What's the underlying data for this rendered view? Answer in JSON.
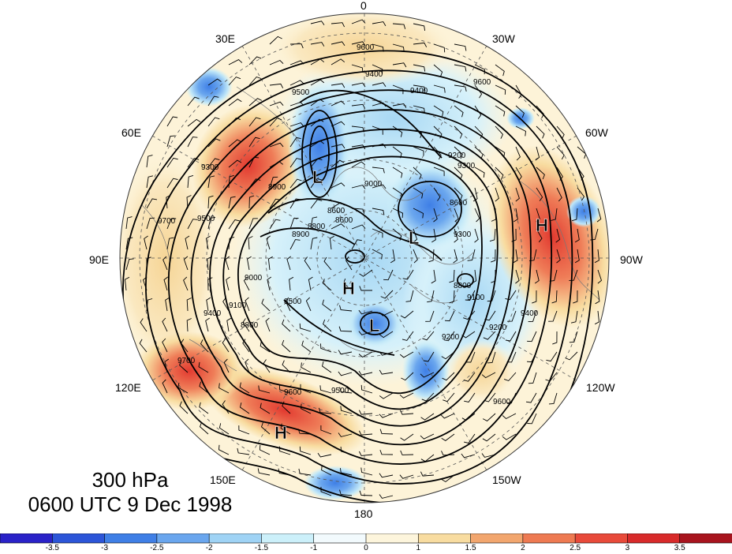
{
  "map": {
    "projection": "north-polar-stereographic",
    "variable": "geopotential height (contours) with wind barbs and shaded anomaly",
    "title_level": "300 hPa",
    "title_time": "0600 UTC 9 Dec 1998",
    "longitude_labels": [
      {
        "id": "lon-0",
        "text": "0"
      },
      {
        "id": "lon-30w",
        "text": "30W"
      },
      {
        "id": "lon-60w",
        "text": "60W"
      },
      {
        "id": "lon-90w",
        "text": "90W"
      },
      {
        "id": "lon-120w",
        "text": "120W"
      },
      {
        "id": "lon-150w",
        "text": "150W"
      },
      {
        "id": "lon-180",
        "text": "180"
      },
      {
        "id": "lon-150e",
        "text": "150E"
      },
      {
        "id": "lon-120e",
        "text": "120E"
      },
      {
        "id": "lon-90e",
        "text": "90E"
      },
      {
        "id": "lon-60e",
        "text": "60E"
      },
      {
        "id": "lon-30e",
        "text": "30E"
      }
    ],
    "pressure_centers": [
      {
        "id": "L1",
        "text": "L"
      },
      {
        "id": "L2",
        "text": "L"
      },
      {
        "id": "L3",
        "text": "L"
      },
      {
        "id": "H1",
        "text": "H"
      },
      {
        "id": "H2",
        "text": "H"
      },
      {
        "id": "H3",
        "text": "H"
      }
    ],
    "contour_labels": [
      "9600",
      "9400",
      "9500",
      "9600",
      "9400",
      "9200",
      "9300",
      "9000",
      "8900",
      "8600",
      "8800",
      "8900",
      "9300",
      "9500",
      "9700",
      "9000",
      "9100",
      "8800",
      "8500",
      "8600",
      "9400",
      "9500",
      "9600",
      "9700",
      "9200",
      "9300",
      "8800",
      "8600",
      "9100",
      "9200",
      "9400",
      "9600"
    ]
  },
  "colorbar": {
    "ticks": [
      "-3.5",
      "-3",
      "-2.5",
      "-2",
      "-1.5",
      "-1",
      "0",
      "1",
      "1.5",
      "2",
      "2.5",
      "3",
      "3.5"
    ],
    "colors": [
      "#2a22c8",
      "#2c55d8",
      "#3f7fe6",
      "#6aa6ee",
      "#9fd3f5",
      "#ccf0fa",
      "#f2fafd",
      "#fdf5dc",
      "#f8dca0",
      "#f2a66e",
      "#ee7a52",
      "#e84a3a",
      "#d82a2a",
      "#a8141e"
    ]
  }
}
